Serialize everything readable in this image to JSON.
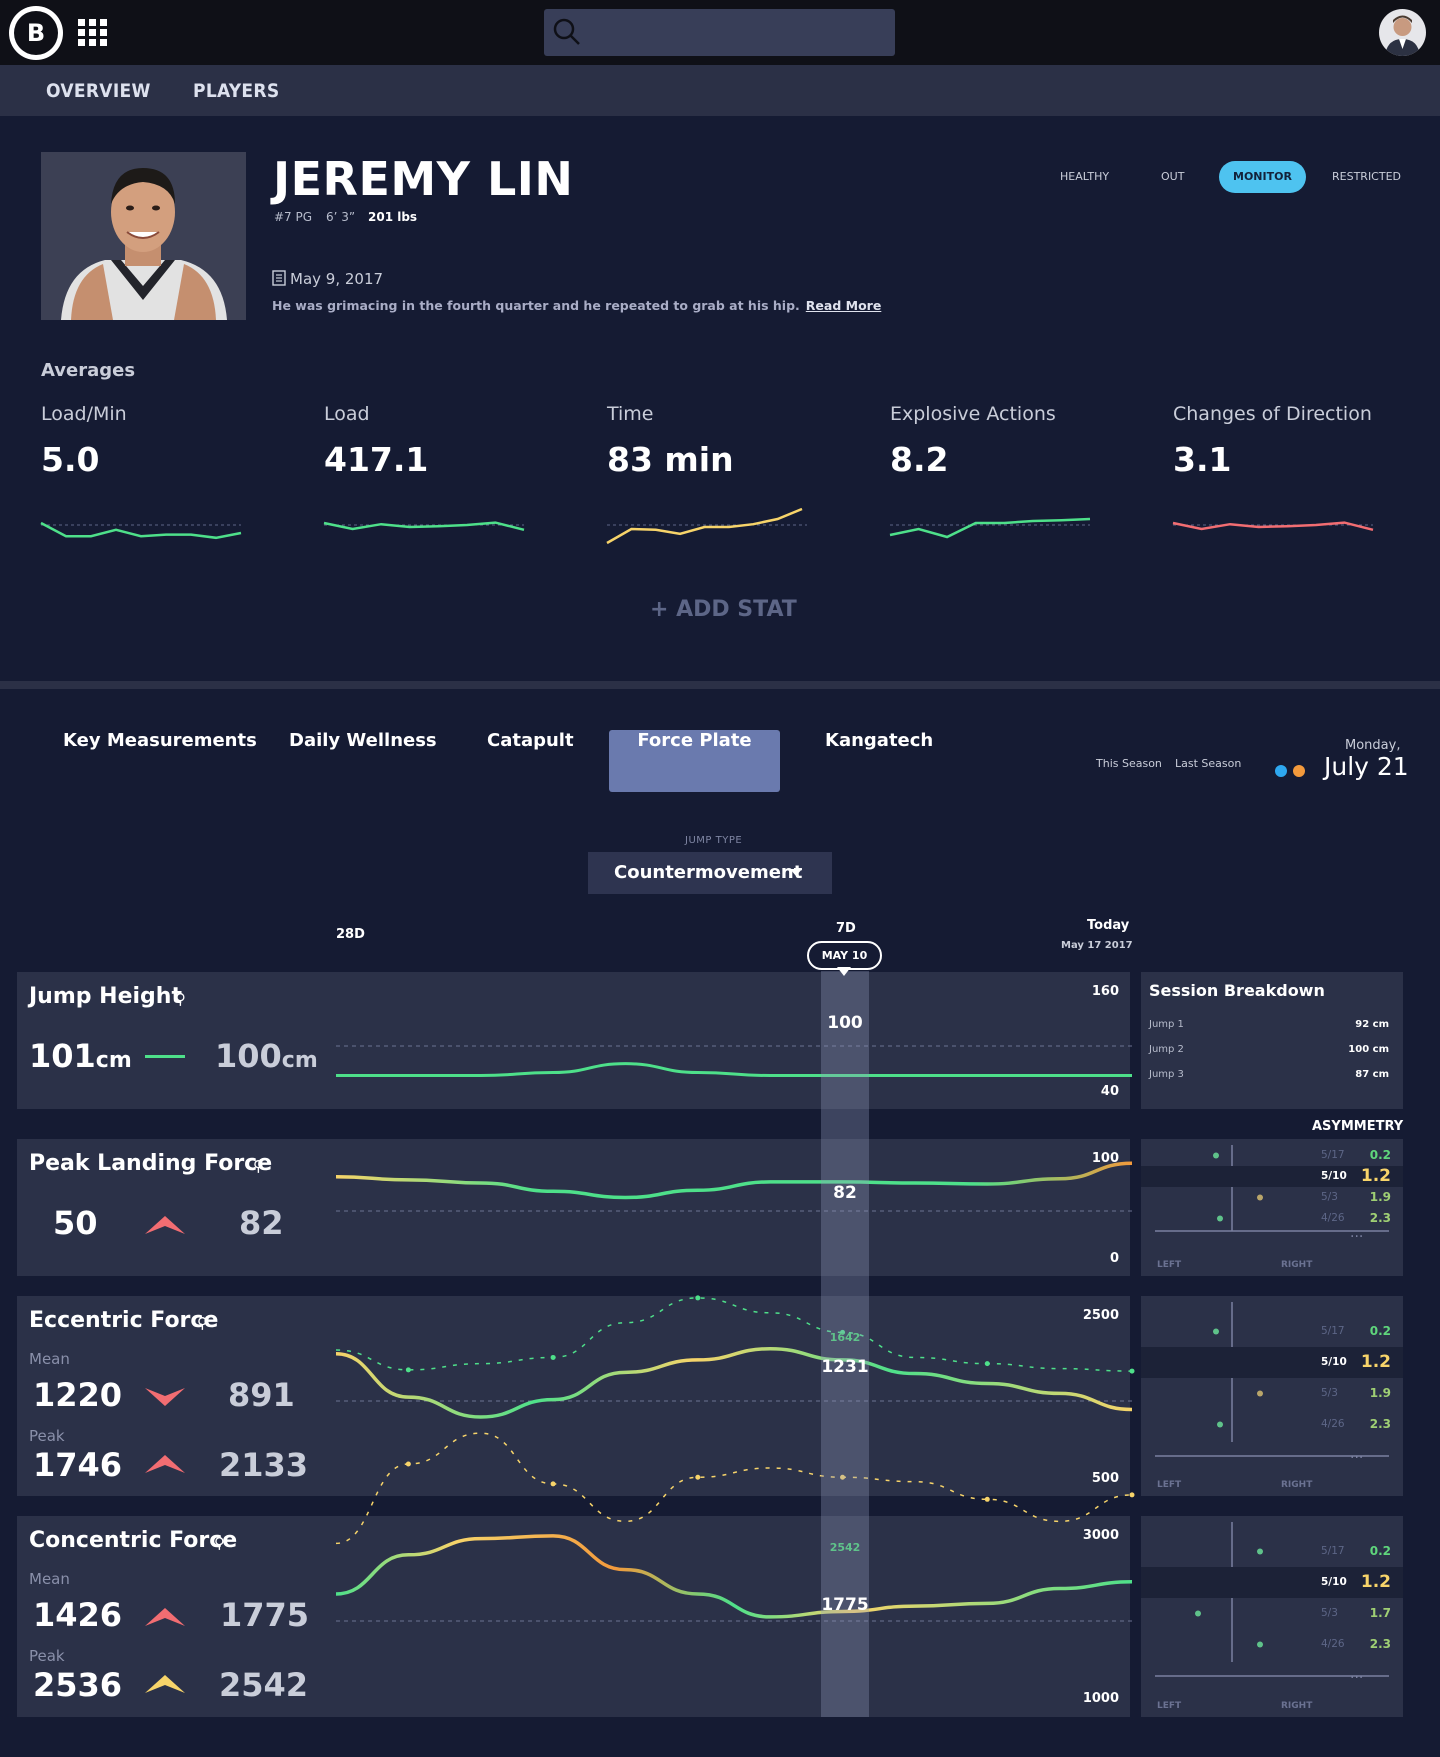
{
  "header": {
    "logo_letter": "B",
    "nav": {
      "overview": "OVERVIEW",
      "players": "PLAYERS"
    }
  },
  "player": {
    "name": "JEREMY LIN",
    "number_position": "#7 PG",
    "height": "6’ 3”",
    "weight": "201 lbs",
    "statuses": [
      "HEALTHY",
      "OUT",
      "MONITOR",
      "RESTRICTED"
    ],
    "active_status": "MONITOR",
    "note_date": "May 9, 2017",
    "note_text": "He was grimacing in the fourth quarter and he repeated to grab at his hip.",
    "note_link": "Read More"
  },
  "averages": {
    "title": "Averages",
    "items": [
      {
        "label": "Load/Min",
        "value": "5.0",
        "color": "#4ee08a",
        "trend": [
          0.45,
          0.78,
          0.78,
          0.62,
          0.78,
          0.74,
          0.74,
          0.82,
          0.7
        ]
      },
      {
        "label": "Load",
        "value": "417.1",
        "color": "#4ee08a",
        "trend": [
          0.45,
          0.6,
          0.48,
          0.55,
          0.53,
          0.5,
          0.44,
          0.62
        ]
      },
      {
        "label": "Time",
        "value": "83 min",
        "color": "#f7d46a",
        "trend": [
          0.95,
          0.6,
          0.62,
          0.72,
          0.55,
          0.55,
          0.48,
          0.35,
          0.1
        ]
      },
      {
        "label": "Explosive Actions",
        "value": "8.2",
        "color": "#4ee08a",
        "trend": [
          0.75,
          0.6,
          0.8,
          0.45,
          0.45,
          0.4,
          0.38,
          0.35
        ]
      },
      {
        "label": "Changes of Direction",
        "value": "3.1",
        "color": "#f26d72",
        "trend": [
          0.45,
          0.6,
          0.48,
          0.55,
          0.53,
          0.5,
          0.44,
          0.62
        ]
      }
    ],
    "add_stat": "+ ADD STAT"
  },
  "tabs": [
    "Key Measurements",
    "Daily Wellness",
    "Catapult",
    "Force Plate",
    "Kangatech"
  ],
  "active_tab": "Force Plate",
  "season": {
    "this": "This Season",
    "last": "Last Season",
    "this_color": "#2ea8f0",
    "last_color": "#f39a3c"
  },
  "calendar": {
    "day": "Monday,",
    "date": "July 21"
  },
  "jump_type": {
    "label": "JUMP TYPE",
    "value": "Countermovement"
  },
  "timeline": {
    "d28": "28D",
    "d7": "7D",
    "today": "Today",
    "today_date": "May 17 2017",
    "callout": "MAY 10"
  },
  "metrics": {
    "jump_height": {
      "title": "Jump Height",
      "left": "101",
      "right": "100",
      "unit": "cm",
      "axis_top": "160",
      "axis_bottom": "40",
      "band_value": "100",
      "line": [
        100,
        100,
        100,
        101,
        104,
        101,
        100,
        100,
        100,
        100,
        100,
        100
      ]
    },
    "peak_landing_force": {
      "title": "Peak Landing Force",
      "left": "50",
      "right": "82",
      "axis_top": "100",
      "axis_bottom": "0",
      "band_value": "82",
      "line": [
        82,
        79,
        76,
        68,
        62,
        69,
        77,
        77,
        76,
        75,
        80,
        95
      ]
    },
    "eccentric_force": {
      "title": "Eccentric Force",
      "mean_label": "Mean",
      "mean_left": "1220",
      "mean_right": "891",
      "peak_label": "Peak",
      "peak_left": "1746",
      "peak_right": "2133",
      "axis_top": "2500",
      "axis_bottom": "500",
      "band_value": "1231",
      "band_value_peak": "1642",
      "line": [
        1470,
        1120,
        960,
        1100,
        1320,
        1420,
        1510,
        1420,
        1310,
        1230,
        1150,
        1020
      ],
      "peak_line": [
        1500,
        1340,
        1390,
        1440,
        1720,
        1920,
        1800,
        1642,
        1440,
        1390,
        1350,
        1330
      ]
    },
    "concentric_force": {
      "title": "Concentric Force",
      "mean_label": "Mean",
      "mean_left": "1426",
      "mean_right": "1775",
      "peak_label": "Peak",
      "peak_left": "2536",
      "peak_right": "2542",
      "axis_top": "3000",
      "axis_bottom": "1000",
      "band_value": "1775",
      "band_value_peak": "2542",
      "line": [
        1830,
        2120,
        2240,
        2260,
        2010,
        1830,
        1660,
        1700,
        1740,
        1760,
        1870,
        1920
      ],
      "peak_line": [
        2200,
        2560,
        2700,
        2470,
        2300,
        2500,
        2542,
        2500,
        2480,
        2400,
        2300,
        2420
      ]
    }
  },
  "session_breakdown": {
    "title": "Session Breakdown",
    "jumps": [
      {
        "label": "Jump 1",
        "value": "92 cm"
      },
      {
        "label": "Jump 2",
        "value": "100 cm"
      },
      {
        "label": "Jump 3",
        "value": "87 cm"
      }
    ]
  },
  "asymmetry": {
    "title": "ASYMMETRY",
    "left_label": "LEFT",
    "right_label": "RIGHT",
    "more": "...",
    "panels": [
      {
        "rows": [
          {
            "date": "5/17",
            "value": "0.2",
            "dot": -0.4
          },
          {
            "date": "5/10",
            "value": "1.2",
            "dot": -0.55
          },
          {
            "date": "5/3",
            "value": "1.9",
            "dot": 0.7
          },
          {
            "date": "4/26",
            "value": "2.3",
            "dot": -0.3
          }
        ]
      },
      {
        "rows": [
          {
            "date": "5/17",
            "value": "0.2",
            "dot": -0.4
          },
          {
            "date": "5/10",
            "value": "1.2",
            "dot": -0.55
          },
          {
            "date": "5/3",
            "value": "1.9",
            "dot": 0.7
          },
          {
            "date": "4/26",
            "value": "2.3",
            "dot": -0.3
          }
        ]
      },
      {
        "rows": [
          {
            "date": "5/17",
            "value": "0.2",
            "dot": 0.7
          },
          {
            "date": "5/10",
            "value": "1.2",
            "dot": 0.75
          },
          {
            "date": "5/3",
            "value": "1.7",
            "dot": -0.85
          },
          {
            "date": "4/26",
            "value": "2.3",
            "dot": 0.7
          }
        ]
      }
    ],
    "value_colors": [
      "#5fd67c",
      "#f7d46a",
      "#9fcf74",
      "#9fcf74"
    ]
  }
}
